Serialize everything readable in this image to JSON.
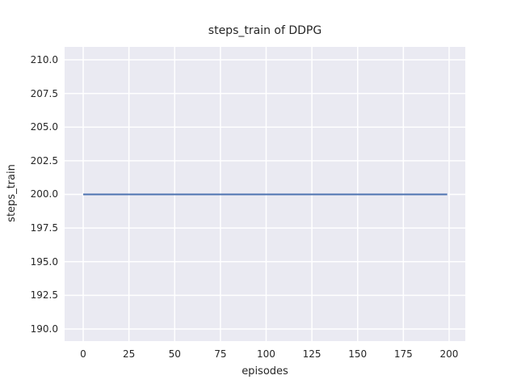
{
  "chart_data": {
    "type": "line",
    "title": "steps_train of DDPG",
    "xlabel": "episodes",
    "ylabel": "steps_train",
    "xlim": [
      -10.15,
      208.85
    ],
    "ylim": [
      189.1,
      210.96
    ],
    "xticks": [
      0,
      25,
      50,
      75,
      100,
      125,
      150,
      175,
      200
    ],
    "xtick_labels": [
      "0",
      "25",
      "50",
      "75",
      "100",
      "125",
      "150",
      "175",
      "200"
    ],
    "yticks": [
      190.0,
      192.5,
      195.0,
      197.5,
      200.0,
      202.5,
      205.0,
      207.5,
      210.0
    ],
    "ytick_labels": [
      "190.0",
      "192.5",
      "195.0",
      "197.5",
      "200.0",
      "202.5",
      "205.0",
      "207.5",
      "210.0"
    ],
    "grid": true,
    "legend": null,
    "colors": {
      "axes_background": "#eaeaf2",
      "grid": "#ffffff",
      "text": "#262626",
      "line": "#4c72b0"
    },
    "series": [
      {
        "name": "steps_train",
        "color": "#4c72b0",
        "x": [
          0,
          199
        ],
        "y": [
          200,
          200
        ],
        "note": "constant value 200 for all episodes 0-199"
      }
    ]
  }
}
